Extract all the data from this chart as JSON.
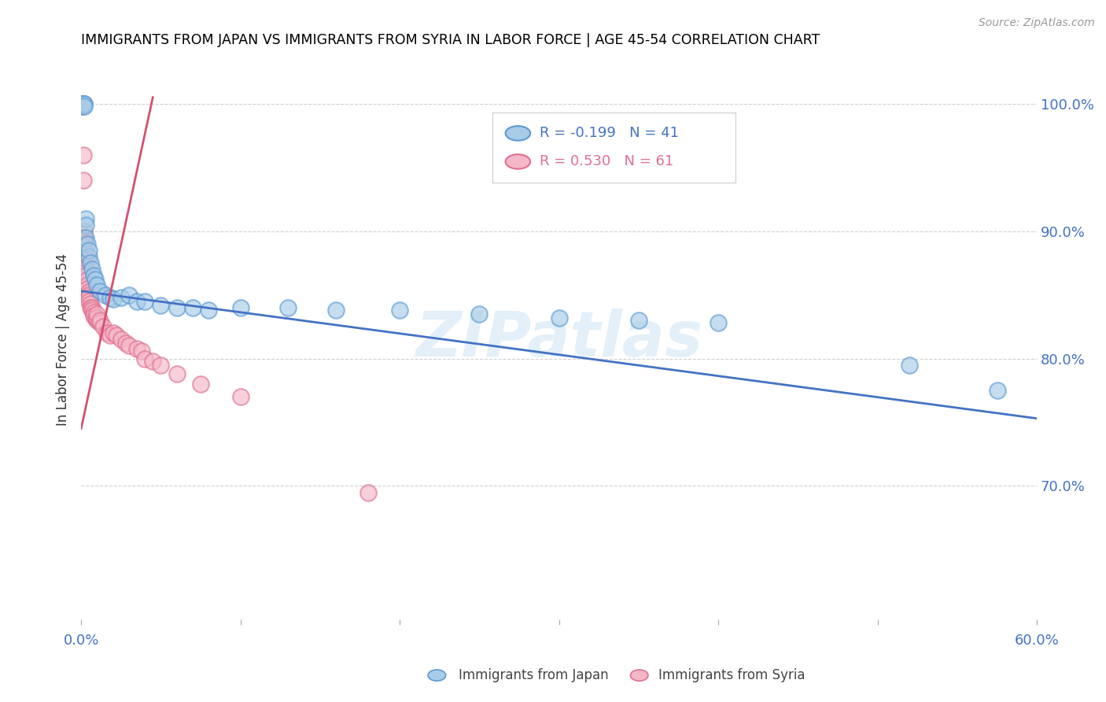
{
  "title": "IMMIGRANTS FROM JAPAN VS IMMIGRANTS FROM SYRIA IN LABOR FORCE | AGE 45-54 CORRELATION CHART",
  "source": "Source: ZipAtlas.com",
  "ylabel": "In Labor Force | Age 45-54",
  "xlim": [
    0.0,
    0.6
  ],
  "ylim": [
    0.595,
    1.035
  ],
  "japan_color": "#a8cce8",
  "japan_edge": "#5b9bd5",
  "syria_color": "#f5b8c8",
  "syria_edge": "#e07090",
  "japan_R": -0.199,
  "japan_N": 41,
  "syria_R": 0.53,
  "syria_N": 61,
  "japan_line_color": "#4472c4",
  "syria_line_color": "#d45070",
  "watermark": "ZIPatlas",
  "legend_japan_label": "Immigrants from Japan",
  "legend_syria_label": "Immigrants from Syria",
  "japan_x": [
    0.001,
    0.001,
    0.001,
    0.001,
    0.001,
    0.002,
    0.002,
    0.002,
    0.003,
    0.003,
    0.003,
    0.004,
    0.005,
    0.005,
    0.006,
    0.007,
    0.008,
    0.009,
    0.01,
    0.012,
    0.015,
    0.018,
    0.02,
    0.025,
    0.03,
    0.035,
    0.04,
    0.05,
    0.06,
    0.07,
    0.08,
    0.1,
    0.13,
    0.16,
    0.2,
    0.25,
    0.3,
    0.35,
    0.4,
    0.52,
    0.575
  ],
  "japan_y": [
    1.0,
    1.0,
    1.0,
    1.0,
    0.998,
    1.0,
    1.0,
    0.998,
    0.91,
    0.905,
    0.895,
    0.89,
    0.88,
    0.885,
    0.875,
    0.87,
    0.865,
    0.862,
    0.858,
    0.853,
    0.85,
    0.848,
    0.847,
    0.848,
    0.85,
    0.845,
    0.845,
    0.842,
    0.84,
    0.84,
    0.838,
    0.84,
    0.84,
    0.838,
    0.838,
    0.835,
    0.832,
    0.83,
    0.828,
    0.795,
    0.775
  ],
  "syria_x": [
    0.0005,
    0.0005,
    0.0005,
    0.0008,
    0.001,
    0.001,
    0.001,
    0.001,
    0.001,
    0.0015,
    0.0015,
    0.002,
    0.002,
    0.002,
    0.002,
    0.002,
    0.002,
    0.002,
    0.003,
    0.003,
    0.003,
    0.003,
    0.003,
    0.003,
    0.003,
    0.004,
    0.004,
    0.004,
    0.005,
    0.005,
    0.005,
    0.005,
    0.006,
    0.006,
    0.007,
    0.007,
    0.008,
    0.008,
    0.009,
    0.01,
    0.01,
    0.01,
    0.012,
    0.012,
    0.014,
    0.016,
    0.018,
    0.02,
    0.022,
    0.025,
    0.028,
    0.03,
    0.035,
    0.038,
    0.04,
    0.045,
    0.05,
    0.06,
    0.075,
    0.1,
    0.18
  ],
  "syria_y": [
    1.0,
    1.0,
    1.0,
    1.0,
    1.0,
    1.0,
    1.0,
    1.0,
    0.998,
    0.96,
    0.94,
    0.9,
    0.895,
    0.895,
    0.892,
    0.89,
    0.888,
    0.885,
    0.882,
    0.878,
    0.875,
    0.872,
    0.87,
    0.868,
    0.865,
    0.862,
    0.858,
    0.855,
    0.852,
    0.85,
    0.848,
    0.845,
    0.843,
    0.84,
    0.84,
    0.838,
    0.836,
    0.834,
    0.832,
    0.83,
    0.832,
    0.835,
    0.828,
    0.83,
    0.825,
    0.82,
    0.818,
    0.82,
    0.818,
    0.815,
    0.812,
    0.81,
    0.808,
    0.806,
    0.8,
    0.798,
    0.795,
    0.788,
    0.78,
    0.77,
    0.695
  ],
  "japan_line_x": [
    0.0,
    0.6
  ],
  "japan_line_y": [
    0.853,
    0.753
  ],
  "syria_line_x": [
    0.0,
    0.045
  ],
  "syria_line_y": [
    0.745,
    1.005
  ]
}
